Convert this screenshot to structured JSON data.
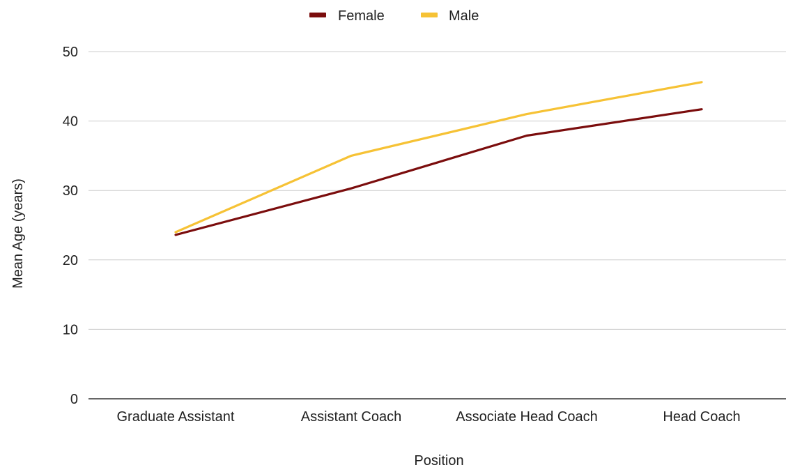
{
  "chart_data": {
    "type": "line",
    "title": "",
    "xlabel": "Position",
    "ylabel": "Mean Age (years)",
    "categories": [
      "Graduate Assistant",
      "Assistant Coach",
      "Associate Head Coach",
      "Head Coach"
    ],
    "ylim": [
      0,
      50
    ],
    "yticks": [
      "0",
      "10",
      "20",
      "30",
      "40",
      "50"
    ],
    "grid": true,
    "legend_position": "top",
    "series": [
      {
        "name": "Female",
        "color": "#7b0d0d",
        "values": [
          23.6,
          30.3,
          37.9,
          41.7
        ]
      },
      {
        "name": "Male",
        "color": "#f6c235",
        "values": [
          24.0,
          35.0,
          41.0,
          45.6
        ]
      }
    ]
  }
}
